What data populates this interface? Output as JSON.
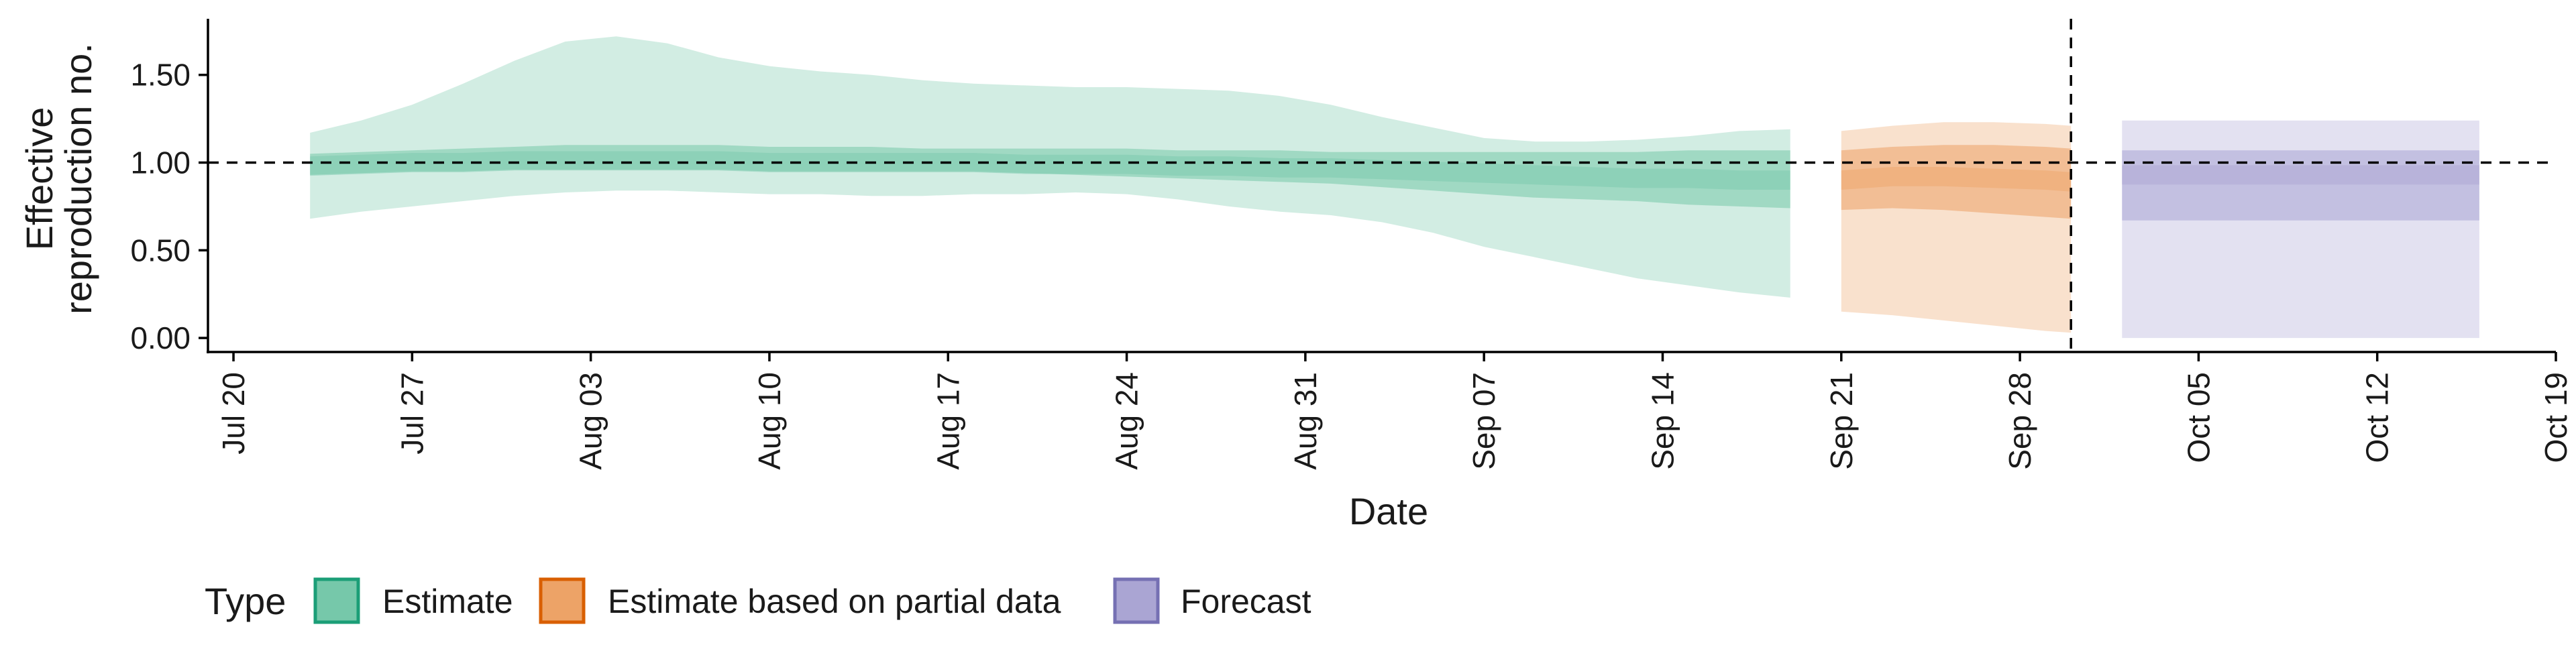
{
  "chart_data": {
    "type": "area",
    "title": "",
    "xlabel": "Date",
    "ylabel_lines": [
      "Effective",
      "reproduction no."
    ],
    "x_ticks": [
      "Jul 20",
      "Jul 27",
      "Aug 03",
      "Aug 10",
      "Aug 17",
      "Aug 24",
      "Aug 31",
      "Sep 07",
      "Sep 14",
      "Sep 21",
      "Sep 28",
      "Oct 05",
      "Oct 12",
      "Oct 19"
    ],
    "x_tick_dates": [
      "2020-07-20",
      "2020-07-27",
      "2020-08-03",
      "2020-08-10",
      "2020-08-17",
      "2020-08-24",
      "2020-08-31",
      "2020-09-07",
      "2020-09-14",
      "2020-09-21",
      "2020-09-28",
      "2020-10-05",
      "2020-10-12",
      "2020-10-19"
    ],
    "x_range": [
      "2020-07-19",
      "2020-10-19"
    ],
    "y_ticks": [
      "0.00",
      "0.50",
      "1.00",
      "1.50"
    ],
    "y_tick_values": [
      0.0,
      0.5,
      1.0,
      1.5
    ],
    "ylim": [
      -0.08,
      1.82
    ],
    "reference_line_y": 1.0,
    "forecast_start_line_x": "2020-09-30",
    "legend": {
      "title": "Type",
      "position": "bottom",
      "entries": [
        "Estimate",
        "Estimate based on partial data",
        "Forecast"
      ]
    },
    "colors": {
      "Estimate": {
        "fill": "#76c8aa",
        "stroke": "#1b9e77"
      },
      "Estimate based on partial data": {
        "fill": "#eda367",
        "stroke": "#d95f02"
      },
      "Forecast": {
        "fill": "#aaa5d3",
        "stroke": "#7570b3"
      }
    },
    "series": [
      {
        "name": "Estimate",
        "x": [
          "2020-07-23",
          "2020-07-25",
          "2020-07-27",
          "2020-07-29",
          "2020-07-31",
          "2020-08-02",
          "2020-08-04",
          "2020-08-06",
          "2020-08-08",
          "2020-08-10",
          "2020-08-12",
          "2020-08-14",
          "2020-08-16",
          "2020-08-18",
          "2020-08-20",
          "2020-08-22",
          "2020-08-24",
          "2020-08-26",
          "2020-08-28",
          "2020-08-30",
          "2020-09-01",
          "2020-09-03",
          "2020-09-05",
          "2020-09-07",
          "2020-09-09",
          "2020-09-11",
          "2020-09-13",
          "2020-09-15",
          "2020-09-17",
          "2020-09-19"
        ],
        "median": [
          0.98,
          0.99,
          1.0,
          1.0,
          1.01,
          1.01,
          1.01,
          1.01,
          1.01,
          1.0,
          1.0,
          1.0,
          1.0,
          1.0,
          0.99,
          0.99,
          0.99,
          0.98,
          0.98,
          0.97,
          0.97,
          0.96,
          0.95,
          0.94,
          0.93,
          0.92,
          0.91,
          0.91,
          0.9,
          0.9
        ],
        "inner_lower": [
          0.93,
          0.94,
          0.95,
          0.95,
          0.96,
          0.96,
          0.96,
          0.96,
          0.96,
          0.95,
          0.95,
          0.95,
          0.95,
          0.95,
          0.94,
          0.93,
          0.92,
          0.91,
          0.9,
          0.89,
          0.88,
          0.86,
          0.84,
          0.82,
          0.8,
          0.79,
          0.78,
          0.76,
          0.75,
          0.74
        ],
        "inner_upper": [
          1.05,
          1.06,
          1.07,
          1.08,
          1.09,
          1.1,
          1.1,
          1.1,
          1.1,
          1.09,
          1.09,
          1.09,
          1.08,
          1.08,
          1.08,
          1.08,
          1.08,
          1.07,
          1.07,
          1.07,
          1.06,
          1.06,
          1.06,
          1.06,
          1.06,
          1.06,
          1.06,
          1.07,
          1.07,
          1.07
        ],
        "outer_lower": [
          0.68,
          0.72,
          0.75,
          0.78,
          0.81,
          0.83,
          0.84,
          0.84,
          0.83,
          0.82,
          0.82,
          0.81,
          0.81,
          0.82,
          0.82,
          0.83,
          0.82,
          0.79,
          0.75,
          0.72,
          0.7,
          0.66,
          0.6,
          0.52,
          0.46,
          0.4,
          0.34,
          0.3,
          0.26,
          0.23
        ],
        "outer_upper": [
          1.17,
          1.24,
          1.33,
          1.45,
          1.58,
          1.69,
          1.72,
          1.68,
          1.6,
          1.55,
          1.52,
          1.5,
          1.47,
          1.45,
          1.44,
          1.43,
          1.43,
          1.42,
          1.41,
          1.38,
          1.33,
          1.26,
          1.2,
          1.14,
          1.12,
          1.12,
          1.13,
          1.15,
          1.18,
          1.19
        ]
      },
      {
        "name": "Estimate based on partial data",
        "x": [
          "2020-09-21",
          "2020-09-23",
          "2020-09-25",
          "2020-09-27",
          "2020-09-29",
          "2020-09-30"
        ],
        "median": [
          0.9,
          0.92,
          0.92,
          0.91,
          0.9,
          0.89
        ],
        "inner_lower": [
          0.73,
          0.74,
          0.73,
          0.71,
          0.69,
          0.68
        ],
        "inner_upper": [
          1.07,
          1.09,
          1.1,
          1.1,
          1.09,
          1.08
        ],
        "outer_lower": [
          0.15,
          0.13,
          0.1,
          0.07,
          0.04,
          0.03
        ],
        "outer_upper": [
          1.18,
          1.21,
          1.23,
          1.23,
          1.22,
          1.21
        ]
      },
      {
        "name": "Forecast",
        "x": [
          "2020-10-02",
          "2020-10-16"
        ],
        "median": [
          0.93,
          0.93
        ],
        "inner_lower": [
          0.67,
          0.67
        ],
        "inner_upper": [
          1.07,
          1.07
        ],
        "outer_lower": [
          0.0,
          0.0
        ],
        "outer_upper": [
          1.24,
          1.24
        ]
      }
    ]
  }
}
